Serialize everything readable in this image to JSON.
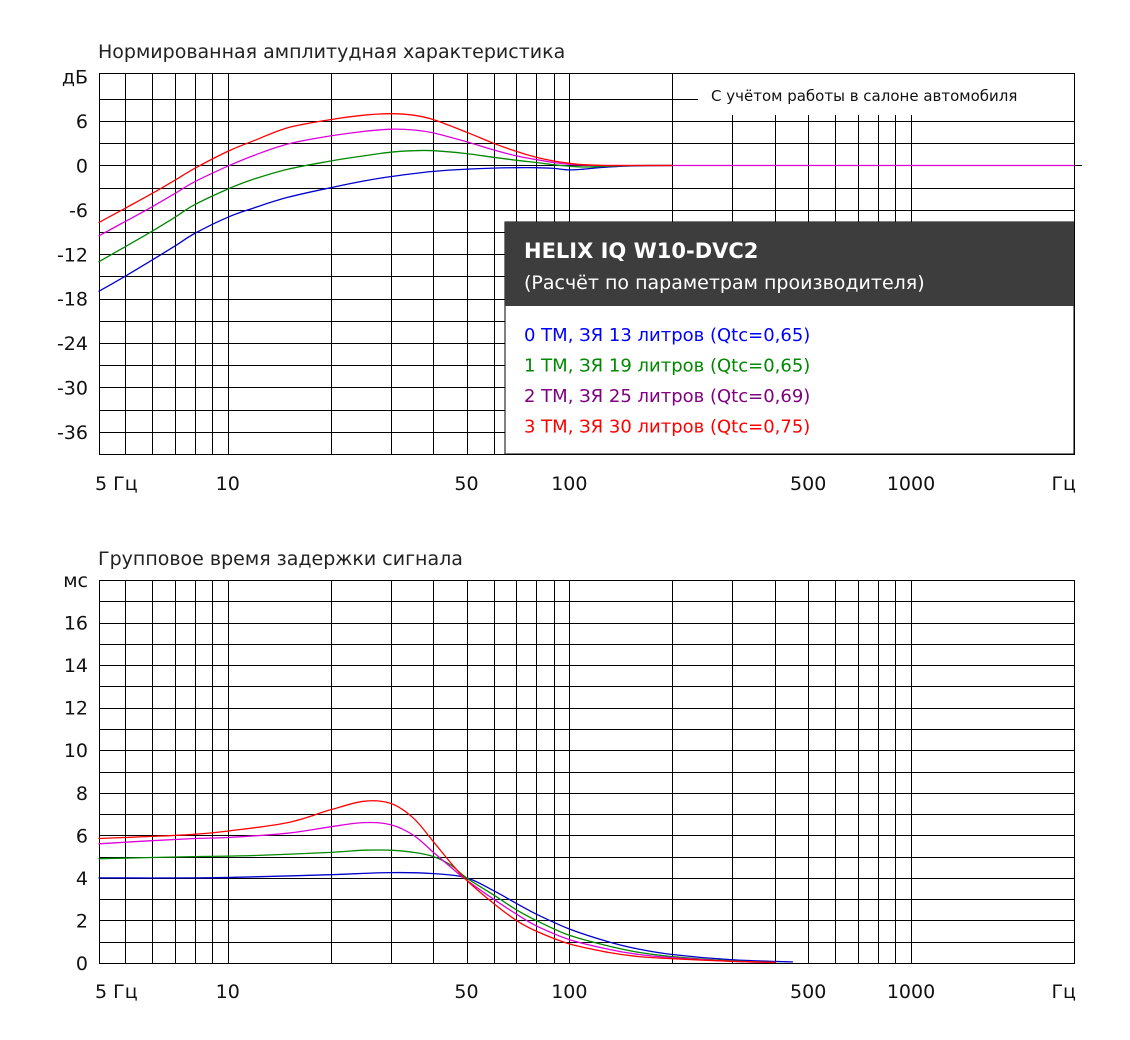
{
  "chart_data": [
    {
      "type": "line",
      "title": "Нормированная амплитудная характеристика",
      "ylabel": "дБ",
      "xlabel": "Гц",
      "x_scale": "log",
      "xlim": [
        4.2,
        3000
      ],
      "ylim": [
        -39,
        12.5
      ],
      "x_tick_labels": [
        {
          "x": 5,
          "label": "5 Гц"
        },
        {
          "x": 10,
          "label": "10"
        },
        {
          "x": 50,
          "label": "50"
        },
        {
          "x": 100,
          "label": "100"
        },
        {
          "x": 500,
          "label": "500"
        },
        {
          "x": 1000,
          "label": "1000"
        },
        {
          "x": 3000,
          "label": "Гц"
        }
      ],
      "y_tick_labels": [
        {
          "y": 12,
          "label": "дБ"
        },
        {
          "y": 6,
          "label": "6"
        },
        {
          "y": 0,
          "label": "0"
        },
        {
          "y": -6,
          "label": "-6"
        },
        {
          "y": -12,
          "label": "-12"
        },
        {
          "y": -18,
          "label": "-18"
        },
        {
          "y": -24,
          "label": "-24"
        },
        {
          "y": -30,
          "label": "-30"
        },
        {
          "y": -36,
          "label": "-36"
        }
      ],
      "note": "С учётом работы в салоне автомобиля",
      "info_box": {
        "title": "HELIX IQ W10-DVC2",
        "subtitle": "(Расчёт по параметрам производителя)"
      },
      "series": [
        {
          "name": "0 ТМ, ЗЯ 13 литров (Qtc=0,65)",
          "color": "#0000cc",
          "x": [
            4.2,
            5,
            6,
            7,
            8,
            10,
            12,
            15,
            20,
            25,
            30,
            40,
            50,
            60,
            70,
            80,
            90,
            100,
            110,
            130,
            160,
            200
          ],
          "y": [
            -17,
            -15,
            -12.8,
            -10.9,
            -9.2,
            -7,
            -5.7,
            -4.3,
            -3,
            -2.1,
            -1.5,
            -0.8,
            -0.5,
            -0.35,
            -0.3,
            -0.3,
            -0.4,
            -0.6,
            -0.5,
            -0.2,
            -0.05,
            0
          ]
        },
        {
          "name": "1 ТМ, ЗЯ 19 литров (Qtc=0,65)",
          "color": "#008800",
          "x": [
            4.2,
            5,
            6,
            7,
            8,
            10,
            12,
            15,
            20,
            25,
            30,
            35,
            40,
            50,
            60,
            70,
            80,
            90,
            100,
            110,
            130,
            160,
            200
          ],
          "y": [
            -13,
            -11,
            -8.9,
            -7,
            -5.3,
            -3.2,
            -1.8,
            -0.5,
            0.6,
            1.3,
            1.8,
            2,
            2,
            1.6,
            1.1,
            0.7,
            0.4,
            0.1,
            -0.1,
            -0.2,
            -0.1,
            0,
            0
          ]
        },
        {
          "name": "2 ТМ, ЗЯ 25 литров (Qtc=0,69)",
          "color": "#800080",
          "x": [
            4.2,
            5,
            6,
            7,
            8,
            10,
            12,
            15,
            20,
            25,
            30,
            35,
            40,
            50,
            60,
            70,
            80,
            90,
            100,
            110,
            130,
            160,
            200,
            3000
          ],
          "y": [
            -9.5,
            -7.6,
            -5.6,
            -3.8,
            -2.2,
            -0.1,
            1.4,
            2.9,
            4,
            4.6,
            4.9,
            4.8,
            4.4,
            3.2,
            2.1,
            1.3,
            0.8,
            0.4,
            0.15,
            0.05,
            0,
            0,
            0,
            0
          ],
          "stroke": "#dd00dd"
        },
        {
          "name": "3 ТМ, ЗЯ 30 литров (Qtc=0,75)",
          "color": "#ff0000",
          "x": [
            4.2,
            5,
            6,
            7,
            8,
            10,
            12,
            15,
            20,
            25,
            30,
            35,
            40,
            50,
            60,
            70,
            80,
            90,
            100,
            110,
            130,
            160,
            200
          ],
          "y": [
            -7.7,
            -5.8,
            -3.8,
            -2,
            -0.4,
            1.9,
            3.4,
            5.1,
            6.2,
            6.8,
            7,
            6.8,
            6.2,
            4.5,
            3,
            1.9,
            1.1,
            0.6,
            0.3,
            0.1,
            0,
            0,
            0
          ]
        }
      ]
    },
    {
      "type": "line",
      "title": "Групповое время задержки сигнала",
      "ylabel": "мс",
      "xlabel": "Гц",
      "x_scale": "log",
      "xlim": [
        4.2,
        3000
      ],
      "ylim": [
        0,
        18
      ],
      "x_tick_labels": [
        {
          "x": 5,
          "label": "5 Гц"
        },
        {
          "x": 10,
          "label": "10"
        },
        {
          "x": 50,
          "label": "50"
        },
        {
          "x": 100,
          "label": "100"
        },
        {
          "x": 500,
          "label": "500"
        },
        {
          "x": 1000,
          "label": "1000"
        },
        {
          "x": 3000,
          "label": "Гц"
        }
      ],
      "y_tick_labels": [
        {
          "y": 18,
          "label": "мс"
        },
        {
          "y": 16,
          "label": "16"
        },
        {
          "y": 14,
          "label": "14"
        },
        {
          "y": 12,
          "label": "12"
        },
        {
          "y": 10,
          "label": "10"
        },
        {
          "y": 8,
          "label": "8"
        },
        {
          "y": 6,
          "label": "6"
        },
        {
          "y": 4,
          "label": "4"
        },
        {
          "y": 2,
          "label": "2"
        },
        {
          "y": 0,
          "label": "0"
        }
      ],
      "series": [
        {
          "name": "0 ТМ, ЗЯ 13 литров (Qtc=0,65)",
          "color": "#0000cc",
          "x": [
            4.2,
            8,
            12,
            20,
            30,
            40,
            50,
            60,
            70,
            80,
            100,
            130,
            160,
            200,
            300,
            450
          ],
          "y": [
            4,
            4,
            4.05,
            4.15,
            4.25,
            4.2,
            4,
            3.4,
            2.8,
            2.3,
            1.6,
            1,
            0.65,
            0.4,
            0.15,
            0.05
          ]
        },
        {
          "name": "1 ТМ, ЗЯ 19 литров (Qtc=0,65)",
          "color": "#008800",
          "x": [
            4.2,
            8,
            12,
            20,
            25,
            30,
            35,
            40,
            45,
            50,
            60,
            70,
            80,
            100,
            130,
            160,
            200,
            300,
            400
          ],
          "y": [
            4.9,
            5,
            5.05,
            5.2,
            5.3,
            5.3,
            5.2,
            5,
            4.6,
            4,
            3.2,
            2.5,
            2,
            1.3,
            0.8,
            0.5,
            0.3,
            0.1,
            0.03
          ]
        },
        {
          "name": "2 ТМ, ЗЯ 25 литров (Qtc=0,69)",
          "color": "#800080",
          "stroke": "#dd00dd",
          "x": [
            4.2,
            6,
            8,
            10,
            15,
            20,
            25,
            30,
            35,
            40,
            45,
            50,
            60,
            70,
            80,
            100,
            130,
            160,
            200,
            300,
            400
          ],
          "y": [
            5.6,
            5.75,
            5.85,
            5.9,
            6.1,
            6.4,
            6.6,
            6.5,
            6,
            5.2,
            4.5,
            3.9,
            3,
            2.3,
            1.75,
            1.1,
            0.65,
            0.4,
            0.25,
            0.08,
            0.03
          ]
        },
        {
          "name": "3 ТМ, ЗЯ 30 литров (Qtc=0,75)",
          "color": "#ff0000",
          "x": [
            4.2,
            6,
            8,
            10,
            15,
            20,
            25,
            30,
            35,
            40,
            45,
            50,
            60,
            70,
            80,
            100,
            130,
            160,
            200,
            300,
            400
          ],
          "y": [
            5.85,
            5.95,
            6.05,
            6.2,
            6.6,
            7.2,
            7.6,
            7.5,
            6.8,
            5.7,
            4.7,
            3.9,
            2.8,
            2,
            1.5,
            0.9,
            0.5,
            0.3,
            0.2,
            0.08,
            0.03
          ]
        }
      ]
    }
  ]
}
